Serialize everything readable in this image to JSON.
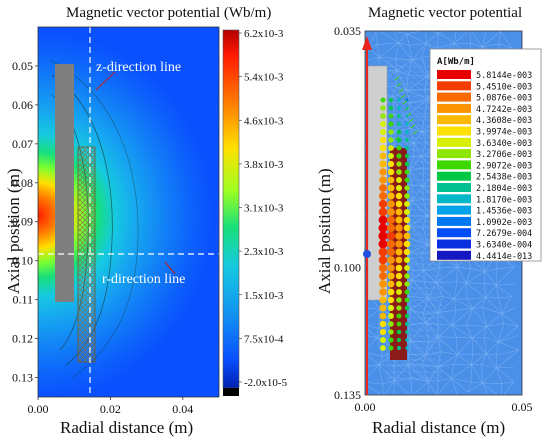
{
  "chart_data": [
    {
      "type": "heatmap",
      "title": "Magnetic vector potential (Wb/m)",
      "xlabel": "Radial distance (m)",
      "ylabel": "Axial position (m)",
      "xlim": [
        0.0,
        0.05
      ],
      "ylim": [
        0.135,
        0.04
      ],
      "x_ticks": [
        "0.00",
        "0.02",
        "0.04"
      ],
      "y_ticks": [
        "0.05",
        "0.06",
        "0.07",
        "0.08",
        "0.09",
        "0.10",
        "0.11",
        "0.12",
        "0.13"
      ],
      "colorbar_labels": [
        "6.2x10-3",
        "5.4x10-3",
        "4.6x10-3",
        "3.8x10-3",
        "3.1x10-3",
        "2.3x10-3",
        "1.5x10-3",
        "7.5x10-4",
        "-2.0x10-5"
      ],
      "annotations": [
        "z-direction line",
        "r-direction line"
      ],
      "colors": {
        "min": "#000080",
        "low": "#0a4dff",
        "mid": "#16c9e0",
        "high": "#ffe000",
        "max": "#d40000",
        "core": "#7f7f7f"
      }
    },
    {
      "type": "scatter",
      "title": "Magnetic vector potential",
      "xlabel": "Radial distance (m)",
      "ylabel": "Axial position (m)",
      "xlim": [
        0.0,
        0.05
      ],
      "ylim": [
        0.135,
        0.035
      ],
      "x_ticks": [
        "0.00",
        "0.05"
      ],
      "y_ticks": [
        "0.035",
        "0.100",
        "0.135"
      ],
      "legend_title": "A[Wb/m]",
      "legend_position": "top-right",
      "legend": [
        {
          "label": "5.8144e-003",
          "color": "#e80000"
        },
        {
          "label": "5.4510e-003",
          "color": "#f23c00"
        },
        {
          "label": "5.0876e-003",
          "color": "#f76a00"
        },
        {
          "label": "4.7242e-003",
          "color": "#fb9400"
        },
        {
          "label": "4.3608e-003",
          "color": "#fdb800"
        },
        {
          "label": "3.9974e-003",
          "color": "#fde000"
        },
        {
          "label": "3.6340e-003",
          "color": "#d8f000"
        },
        {
          "label": "3.2706e-003",
          "color": "#8fe600"
        },
        {
          "label": "2.9072e-003",
          "color": "#3ed800"
        },
        {
          "label": "2.5438e-003",
          "color": "#00c845"
        },
        {
          "label": "2.1804e-003",
          "color": "#00c090"
        },
        {
          "label": "1.8170e-003",
          "color": "#00b8c6"
        },
        {
          "label": "1.4536e-003",
          "color": "#00a2e8"
        },
        {
          "label": "1.0902e-003",
          "color": "#0078f0"
        },
        {
          "label": "7.2679e-004",
          "color": "#004ef8"
        },
        {
          "label": "3.6340e-004",
          "color": "#0a30e0"
        },
        {
          "label": "4.4414e-013",
          "color": "#1418c0"
        }
      ],
      "colors": {
        "background": "#4a8fe8",
        "mesh": "#7fb4f4",
        "core": "#cfcfcf",
        "coil": "#8b1a1a",
        "axis_arrow": "#e8261e",
        "axis_dot": "#2050e0"
      }
    }
  ]
}
